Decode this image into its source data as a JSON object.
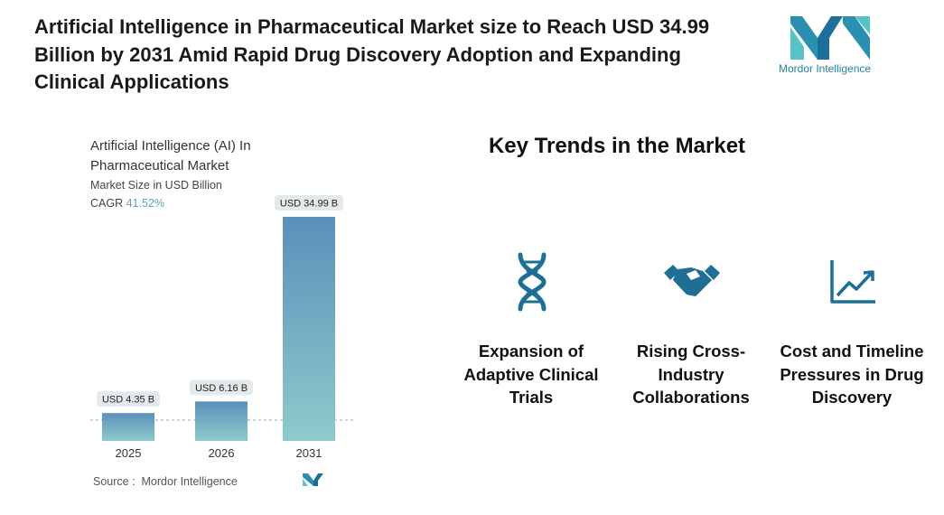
{
  "header": {
    "title": "Artificial Intelligence in Pharmaceutical Market size to Reach USD 34.99 Billion by 2031 Amid Rapid Drug Discovery Adoption and Expanding Clinical Applications"
  },
  "logo": {
    "text": "Mordor Intelligence"
  },
  "chart_data": {
    "type": "bar",
    "title": "Artificial Intelligence (AI) In Pharmaceutical Market",
    "subtitle": "Market Size in USD Billion",
    "cagr_label": "CAGR",
    "cagr": "41.52%",
    "categories": [
      "2025",
      "2026",
      "2031"
    ],
    "values": [
      4.35,
      6.16,
      34.99
    ],
    "value_labels": [
      "USD 4.35 B",
      "USD 6.16 B",
      "USD 34.99 B"
    ],
    "colors": [
      "#5b8fba",
      "#8dcbcc"
    ]
  },
  "source": {
    "label": "Source :",
    "text": "Mordor Intelligence"
  },
  "trends": {
    "title": "Key Trends in the Market",
    "items": [
      "Expansion of Adaptive Clinical Trials",
      "Rising Cross-Industry Collaborations",
      "Cost and Timeline Pressures in Drug Discovery"
    ]
  }
}
